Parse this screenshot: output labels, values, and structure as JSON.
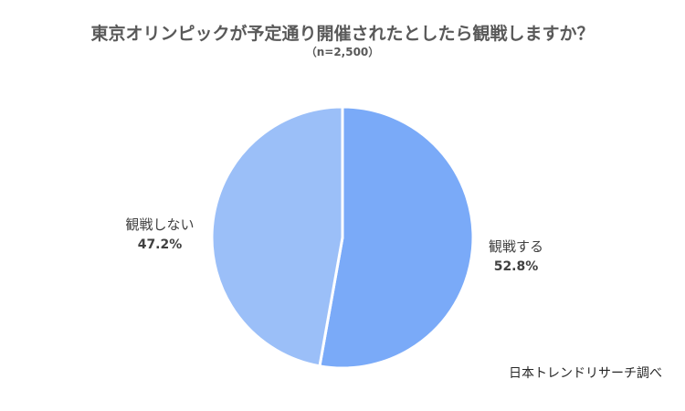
{
  "chart_data": {
    "type": "pie",
    "title": "東京オリンピックが予定通り開催されたとしたら観戦しますか？",
    "subtitle": "（n=2,500）",
    "categories": [
      "観戦する",
      "観戦しない"
    ],
    "values": [
      52.8,
      47.2
    ],
    "value_labels": [
      "52.8%",
      "47.2%"
    ],
    "colors": [
      "#7aaaf8",
      "#9bbff8"
    ],
    "start_angle": "12 o'clock, clockwise",
    "source_note": "日本トレンドリサーチ調べ"
  }
}
